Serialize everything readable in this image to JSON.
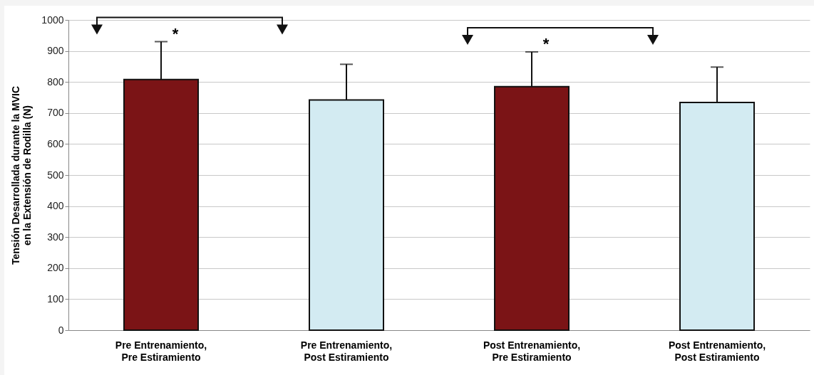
{
  "chart_data": {
    "type": "bar",
    "ylabel": "Tensión Desarrollada durante la MVIC\nen la Extensión de Rodilla (N)",
    "categories": [
      "Pre Entrenamiento,\nPre Estiramiento",
      "Pre Entrenamiento,\nPost Estiramiento",
      "Post Entrenamiento,\nPre Estiramiento",
      "Post Entrenamiento,\nPost Estiramiento"
    ],
    "values": [
      808,
      742,
      785,
      734
    ],
    "colors": [
      "#7b1416",
      "#d3ebf2",
      "#7b1416",
      "#d3ebf2"
    ],
    "errors": [
      [
        808,
        930
      ],
      [
        742,
        857
      ],
      [
        785,
        897
      ],
      [
        734,
        848
      ]
    ],
    "ylim": [
      0,
      1000
    ],
    "yticks": [
      0,
      100,
      200,
      300,
      400,
      500,
      600,
      700,
      800,
      900,
      1000
    ],
    "grid": "y",
    "annotations": [
      "*",
      "*"
    ]
  }
}
